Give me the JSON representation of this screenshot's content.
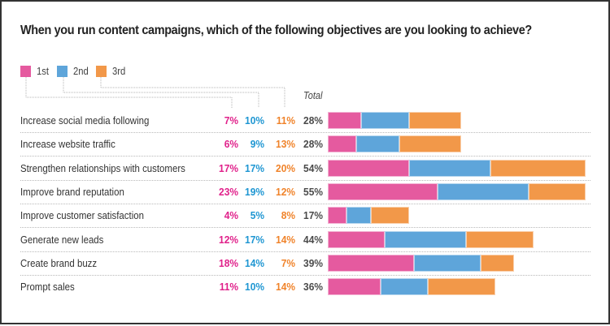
{
  "chart_data": {
    "type": "bar",
    "orientation": "horizontal",
    "stacked": true,
    "title": "When you run content campaigns, which of the following objectives are you looking to achieve?",
    "xlabel": "",
    "ylabel": "",
    "total_header": "Total",
    "legend_position": "top-left",
    "grid": false,
    "xlim": [
      0,
      55
    ],
    "categories": [
      "Increase social media following",
      "Increase website traffic",
      "Strengthen relationships with customers",
      "Improve brand reputation",
      "Improve customer satisfaction",
      "Generate new leads",
      "Create brand buzz",
      "Prompt sales"
    ],
    "series": [
      {
        "name": "1st",
        "color": "#e55a9f",
        "text_color": "#e0208a",
        "values": [
          7,
          6,
          17,
          23,
          4,
          12,
          18,
          11
        ]
      },
      {
        "name": "2nd",
        "color": "#5ea5da",
        "text_color": "#1e96d2",
        "values": [
          10,
          9,
          17,
          19,
          5,
          17,
          14,
          10
        ]
      },
      {
        "name": "3rd",
        "color": "#f29849",
        "text_color": "#f0832a",
        "values": [
          11,
          13,
          20,
          12,
          8,
          14,
          7,
          14
        ]
      }
    ],
    "totals": [
      28,
      28,
      54,
      55,
      17,
      44,
      39,
      36
    ],
    "value_suffix": "%"
  }
}
